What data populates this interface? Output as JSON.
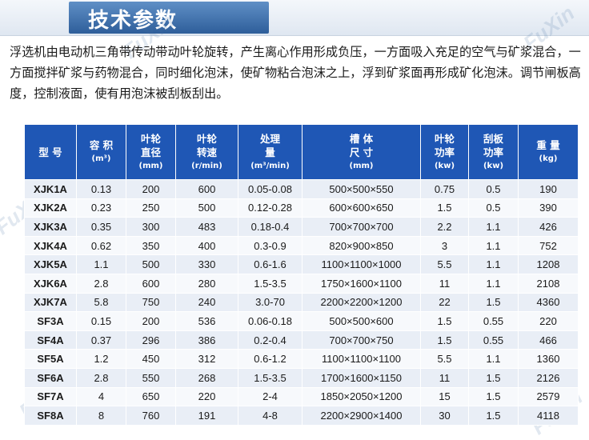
{
  "header": {
    "title": "技术参数"
  },
  "intro": "浮选机由电动机三角带传动带动叶轮旋转，产生离心作用形成负压，一方面吸入充足的空气与矿浆混合，一方面搅拌矿浆与药物混合，同时细化泡沫，使矿物粘合泡沫之上，浮到矿浆面再形成矿化泡沫。调节闸板高度，控制液面，使有用泡沫被刮板刮出。",
  "watermark": "FuXin",
  "table": {
    "headers": [
      {
        "line1": "型  号",
        "line2": "",
        "unit": ""
      },
      {
        "line1": "容 积",
        "line2": "",
        "unit": "(m³)"
      },
      {
        "line1": "叶轮",
        "line2": "直径",
        "unit": "(mm)"
      },
      {
        "line1": "叶轮",
        "line2": "转速",
        "unit": "(r/min)"
      },
      {
        "line1": "处理",
        "line2": "量",
        "unit": "(m³/min)"
      },
      {
        "line1": "槽 体",
        "line2": "尺 寸",
        "unit": "(mm)"
      },
      {
        "line1": "叶轮",
        "line2": "功率",
        "unit": "(kw)"
      },
      {
        "line1": "刮板",
        "line2": "功率",
        "unit": "(kw)"
      },
      {
        "line1": "重 量",
        "line2": "",
        "unit": "(kg)"
      }
    ],
    "rows": [
      [
        "XJK1A",
        "0.13",
        "200",
        "600",
        "0.05-0.08",
        "500×500×550",
        "0.75",
        "0.5",
        "190"
      ],
      [
        "XJK2A",
        "0.23",
        "250",
        "500",
        "0.12-0.28",
        "600×600×650",
        "1.5",
        "0.5",
        "390"
      ],
      [
        "XJK3A",
        "0.35",
        "300",
        "483",
        "0.18-0.4",
        "700×700×700",
        "2.2",
        "1.1",
        "426"
      ],
      [
        "XJK4A",
        "0.62",
        "350",
        "400",
        "0.3-0.9",
        "820×900×850",
        "3",
        "1.1",
        "752"
      ],
      [
        "XJK5A",
        "1.1",
        "500",
        "330",
        "0.6-1.6",
        "1100×1100×1000",
        "5.5",
        "1.1",
        "1208"
      ],
      [
        "XJK6A",
        "2.8",
        "600",
        "280",
        "1.5-3.5",
        "1750×1600×1100",
        "11",
        "1.1",
        "2108"
      ],
      [
        "XJK7A",
        "5.8",
        "750",
        "240",
        "3.0-70",
        "2200×2200×1200",
        "22",
        "1.5",
        "4360"
      ],
      [
        "SF3A",
        "0.15",
        "200",
        "536",
        "0.06-0.18",
        "500×500×600",
        "1.5",
        "0.55",
        "220"
      ],
      [
        "SF4A",
        "0.37",
        "296",
        "386",
        "0.2-0.4",
        "700×700×750",
        "1.5",
        "0.55",
        "466"
      ],
      [
        "SF5A",
        "1.2",
        "450",
        "312",
        "0.6-1.2",
        "1100×1100×1100",
        "5.5",
        "1.1",
        "1360"
      ],
      [
        "SF6A",
        "2.8",
        "550",
        "268",
        "1.5-3.5",
        "1700×1600×1150",
        "11",
        "1.5",
        "2126"
      ],
      [
        "SF7A",
        "4",
        "650",
        "220",
        "2-4",
        "1850×2050×1200",
        "15",
        "1.5",
        "2579"
      ],
      [
        "SF8A",
        "8",
        "760",
        "191",
        "4-8",
        "2200×2900×1400",
        "30",
        "1.5",
        "4118"
      ]
    ]
  },
  "colors": {
    "header_blue": "#1f57b5",
    "row_light": "#e9eef6",
    "title_bar": "#2e5e9a"
  }
}
